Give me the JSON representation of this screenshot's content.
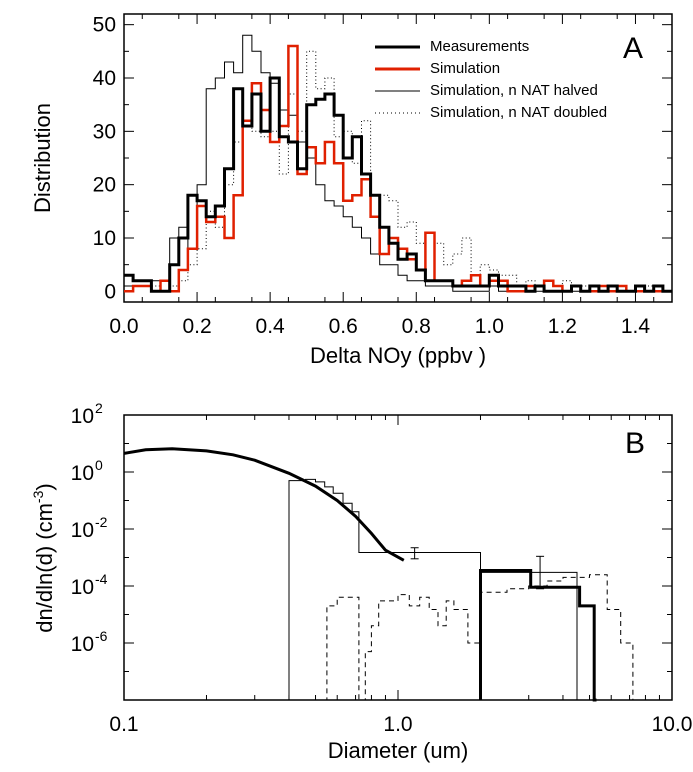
{
  "chart_data": [
    {
      "type": "line",
      "panel_label": "A",
      "xlabel": "Delta NOy (ppbv )",
      "ylabel": "Distribution",
      "xlim": [
        0.0,
        1.5
      ],
      "ylim": [
        -2,
        52
      ],
      "x_ticks": [
        0.0,
        0.2,
        0.4,
        0.6,
        0.8,
        1.0,
        1.2,
        1.4
      ],
      "x_tick_labels": [
        "0.0",
        "0.2",
        "0.4",
        "0.6",
        "0.8",
        "1.0",
        "1.2",
        "1.4"
      ],
      "y_ticks": [
        0,
        10,
        20,
        30,
        40,
        50
      ],
      "y_tick_labels": [
        "0",
        "10",
        "20",
        "30",
        "40",
        "50"
      ],
      "legend_position": "top-right",
      "bin_start": 0.0,
      "bin_width": 0.025,
      "series": [
        {
          "name": "Measurements",
          "color": "#000000",
          "style": "thick",
          "values": [
            3,
            2,
            2,
            0,
            0,
            5,
            10,
            18,
            17,
            14,
            16,
            23,
            38,
            31,
            37,
            30,
            40,
            29,
            28,
            23,
            35,
            36,
            37,
            33,
            25,
            29,
            22,
            18,
            12,
            9,
            6,
            7,
            4,
            2,
            2,
            2,
            1,
            1,
            1,
            1,
            3,
            1,
            1,
            1,
            0,
            1,
            0,
            0,
            0,
            1,
            0,
            1,
            0,
            1,
            0,
            0,
            1,
            0,
            1,
            0
          ]
        },
        {
          "name": "Simulation",
          "color": "#e02000",
          "style": "medium",
          "values": [
            0,
            1,
            1,
            0,
            2,
            0,
            4,
            8,
            16,
            13,
            14,
            10,
            18,
            32,
            39,
            34,
            28,
            31,
            46,
            22,
            27,
            24,
            28,
            24,
            17,
            18,
            21,
            14,
            7,
            10,
            8,
            6,
            4,
            11,
            2,
            2,
            1,
            2,
            3,
            1,
            2,
            2,
            0,
            0,
            1,
            1,
            2,
            1,
            0,
            1,
            0,
            0,
            1,
            0,
            1,
            0,
            0,
            0,
            0,
            0
          ]
        },
        {
          "name": "Simulation, n NAT halved",
          "color": "#000000",
          "style": "thin",
          "values": [
            1,
            1,
            1,
            2,
            0,
            10,
            12,
            8,
            20,
            38,
            40,
            43,
            41,
            48,
            45,
            41,
            39,
            34,
            33,
            28,
            25,
            20,
            17,
            16,
            14,
            12,
            10,
            7,
            5,
            5,
            3,
            2,
            2,
            1,
            1,
            1,
            0,
            0,
            0,
            0,
            1,
            0,
            0,
            0,
            0,
            0,
            0,
            0,
            0,
            0,
            0,
            0,
            0,
            0,
            0,
            0,
            0,
            0,
            0,
            0
          ]
        },
        {
          "name": "Simulation, n NAT doubled",
          "color": "#000000",
          "style": "dotted",
          "values": [
            3,
            2,
            2,
            1,
            0,
            1,
            2,
            5,
            8,
            15,
            12,
            20,
            28,
            32,
            30,
            29,
            30,
            22,
            37,
            30,
            45,
            38,
            40,
            29,
            30,
            24,
            32,
            18,
            18,
            17,
            12,
            13,
            9,
            11,
            9,
            5,
            7,
            10,
            3,
            5,
            4,
            3,
            3,
            1,
            2,
            1,
            2,
            1,
            2,
            1,
            1,
            0,
            1,
            1,
            0,
            0,
            0,
            1,
            0,
            0
          ]
        }
      ]
    },
    {
      "type": "line",
      "panel_label": "B",
      "xlabel": "Diameter (um)",
      "ylabel": "dn/dln(d) (cm",
      "ylabel_exponent": "-3",
      "ylabel_suffix": ")",
      "x_scale": "log",
      "y_scale": "log",
      "xlim": [
        0.1,
        10.0
      ],
      "ylim": [
        1e-08,
        100
      ],
      "x_tick_labels": [
        "0.1",
        "1.0",
        "10.0"
      ],
      "y_tick_labels": [
        {
          "base": "10",
          "exp": "2",
          "value": 100
        },
        {
          "base": "10",
          "exp": "0",
          "value": 1
        },
        {
          "base": "10",
          "exp": "-2",
          "value": 0.01
        },
        {
          "base": "10",
          "exp": "-4",
          "value": 0.0001
        },
        {
          "base": "10",
          "exp": "-6",
          "value": 1e-06
        }
      ],
      "series": [
        {
          "style": "thick-curve",
          "color": "#000000",
          "x": [
            0.1,
            0.12,
            0.15,
            0.2,
            0.25,
            0.3,
            0.4,
            0.5,
            0.6,
            0.7,
            0.8,
            0.9,
            1.05
          ],
          "y": [
            4.5,
            6.0,
            6.5,
            5.5,
            4.0,
            2.6,
            0.9,
            0.32,
            0.1,
            0.028,
            0.007,
            0.0018,
            0.0008
          ]
        },
        {
          "style": "thin-step",
          "color": "#000000",
          "x": [
            0.4,
            0.46,
            0.5,
            0.54,
            0.58,
            0.63,
            0.68,
            0.72,
            2.0,
            3.0,
            4.5,
            4.55
          ],
          "y": [
            0.5,
            0.55,
            0.45,
            0.3,
            0.18,
            0.08,
            0.04,
            0.0015,
            0.0003,
            0.0003,
            1e-08,
            1e-08
          ]
        },
        {
          "style": "thick-step",
          "color": "#000000",
          "x": [
            2.0,
            3.05,
            4.6,
            5.2,
            5.3
          ],
          "y": [
            0.00035,
            9e-05,
            2e-05,
            1e-08,
            1e-08
          ]
        },
        {
          "style": "dashed-step",
          "color": "#000000",
          "x": [
            0.5,
            0.55,
            0.6,
            0.63,
            0.72,
            0.76,
            0.8,
            0.85,
            0.9,
            1.0,
            1.1,
            1.2,
            1.3,
            1.4,
            1.5,
            1.6,
            1.8,
            2.0,
            2.5,
            3.0,
            3.5,
            4.0,
            5.0,
            5.8,
            6.5,
            7.2
          ],
          "y": [
            1e-08,
            2e-05,
            4e-05,
            4e-05,
            1e-08,
            5e-07,
            4e-06,
            3e-05,
            3e-05,
            5e-05,
            2e-05,
            4e-05,
            1.5e-05,
            4e-06,
            3e-05,
            1.5e-05,
            1e-06,
            6e-05,
            8e-05,
            0.0001,
            0.00015,
            0.0002,
            0.00025,
            1.5e-05,
            1e-06,
            1e-08
          ]
        },
        {
          "style": "errorbars",
          "color": "#000000",
          "x": [
            1.15,
            3.3
          ],
          "y": [
            0.0015,
            0.0003
          ],
          "y_low": [
            0.0009,
            8e-05
          ],
          "y_high": [
            0.0022,
            0.0011
          ]
        }
      ]
    }
  ]
}
